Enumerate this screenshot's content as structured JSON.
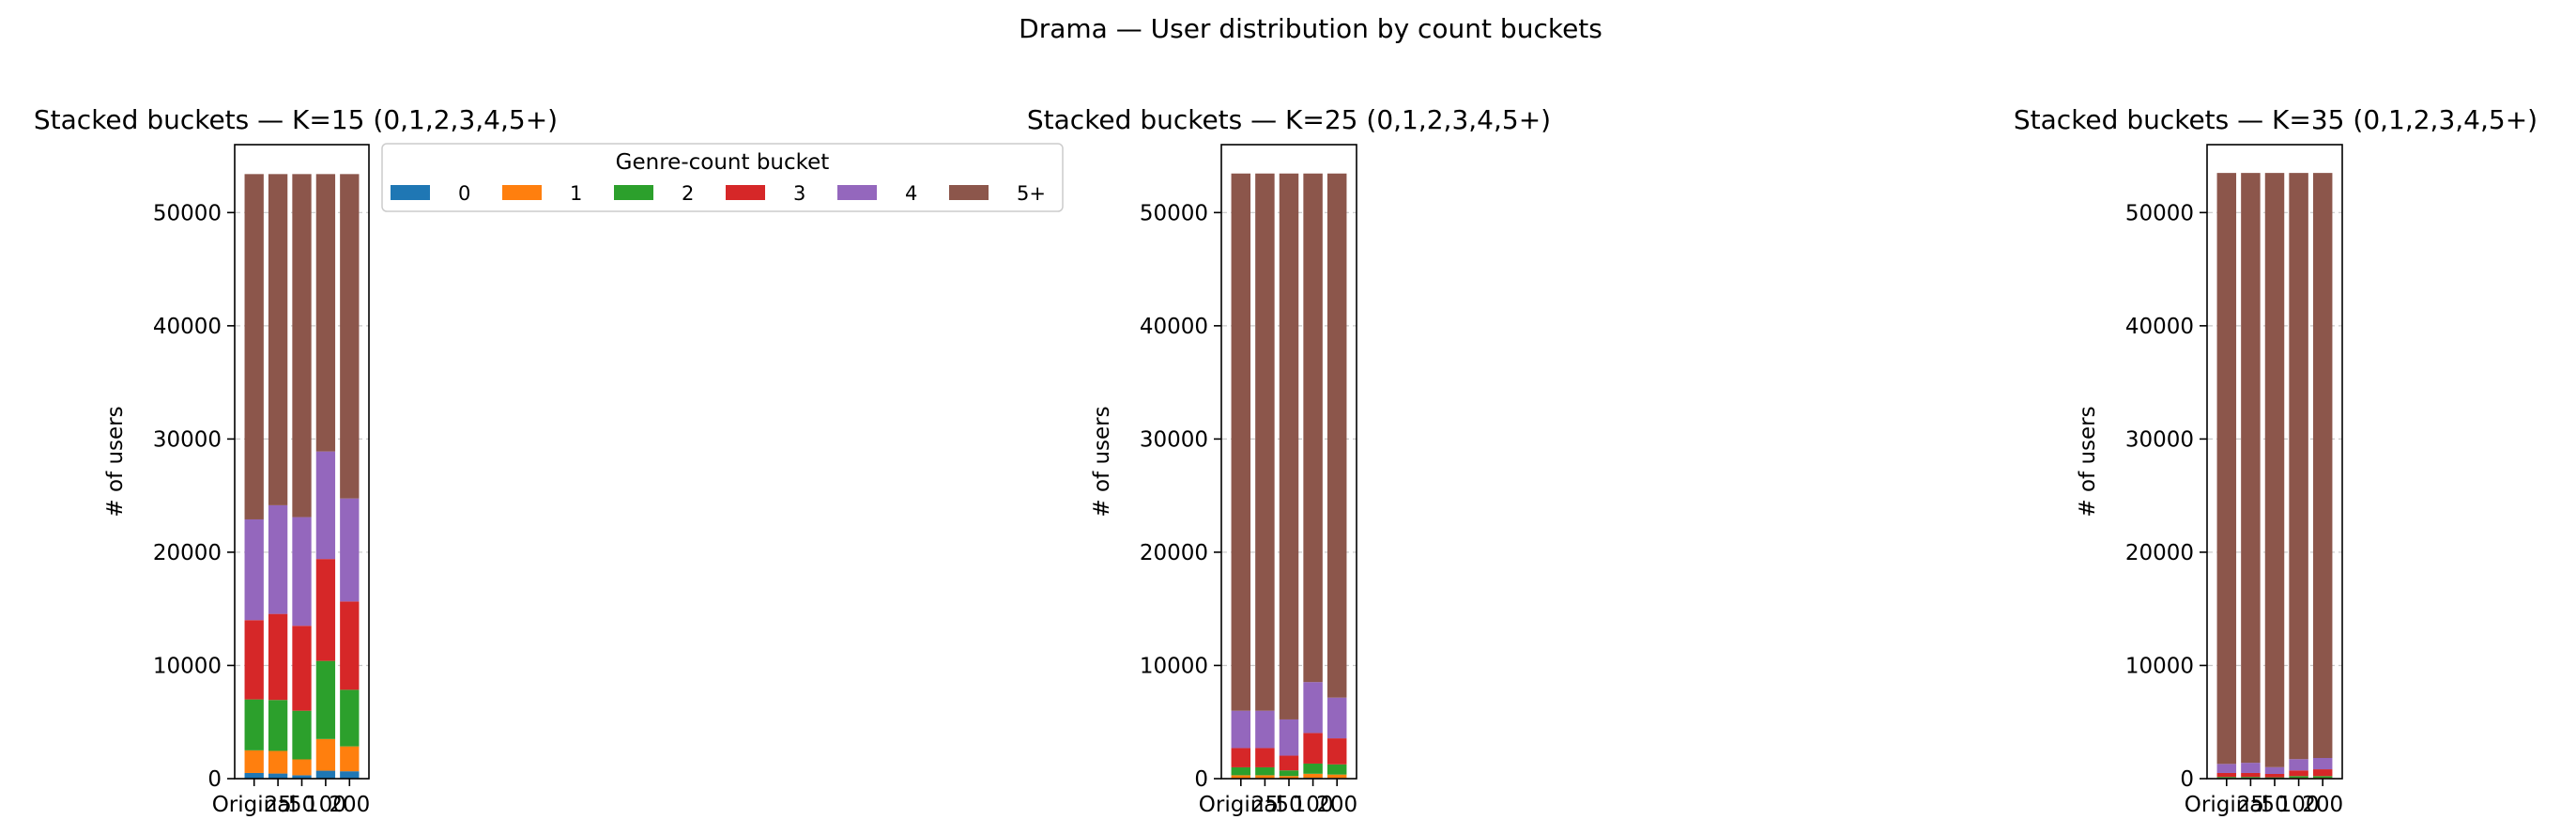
{
  "figure": {
    "title": "Drama — User distribution by count buckets"
  },
  "colors": {
    "0": "#1f77b4",
    "1": "#ff7f0e",
    "2": "#2ca02c",
    "3": "#d62728",
    "4": "#9467bd",
    "5+": "#8c564b"
  },
  "chart_data": [
    {
      "type": "bar",
      "stacked": true,
      "title": "Stacked buckets — K=15  (0,1,2,3,4,5+)",
      "ylabel": "# of users",
      "ylim": [
        0,
        56000
      ],
      "yticks": [
        0,
        10000,
        20000,
        30000,
        40000,
        50000
      ],
      "categories": [
        "Original",
        "25",
        "50",
        "100",
        "200"
      ],
      "series": [
        {
          "name": "0",
          "values": [
            500,
            450,
            300,
            700,
            650
          ]
        },
        {
          "name": "1",
          "values": [
            2000,
            2000,
            1400,
            2800,
            2200
          ]
        },
        {
          "name": "2",
          "values": [
            4500,
            4500,
            4300,
            6900,
            5000
          ]
        },
        {
          "name": "3",
          "values": [
            7000,
            7600,
            7500,
            9000,
            7800
          ]
        },
        {
          "name": "4",
          "values": [
            8900,
            9600,
            9600,
            9500,
            9100
          ]
        },
        {
          "name": "5+",
          "values": [
            30500,
            29250,
            30300,
            24500,
            28650
          ]
        }
      ],
      "legend": {
        "title": "Genre-count bucket",
        "placement": "outside right, top",
        "entries": [
          "0",
          "1",
          "2",
          "3",
          "4",
          "5+"
        ]
      },
      "grid": "y, dashed"
    },
    {
      "type": "bar",
      "stacked": true,
      "title": "Stacked buckets — K=25  (0,1,2,3,4,5+)",
      "ylabel": "# of users",
      "ylim": [
        0,
        56000
      ],
      "yticks": [
        0,
        10000,
        20000,
        30000,
        40000,
        50000
      ],
      "categories": [
        "Original",
        "25",
        "50",
        "100",
        "200"
      ],
      "series": [
        {
          "name": "0",
          "values": [
            50,
            50,
            30,
            80,
            60
          ]
        },
        {
          "name": "1",
          "values": [
            250,
            250,
            200,
            350,
            300
          ]
        },
        {
          "name": "2",
          "values": [
            700,
            700,
            500,
            900,
            900
          ]
        },
        {
          "name": "3",
          "values": [
            1700,
            1700,
            1300,
            2700,
            2300
          ]
        },
        {
          "name": "4",
          "values": [
            3300,
            3300,
            3200,
            4500,
            3600
          ]
        },
        {
          "name": "5+",
          "values": [
            47450,
            47450,
            48220,
            44920,
            46290
          ]
        }
      ],
      "grid": "y, dashed"
    },
    {
      "type": "bar",
      "stacked": true,
      "title": "Stacked buckets — K=35  (0,1,2,3,4,5+)",
      "ylabel": "# of users",
      "ylim": [
        0,
        56000
      ],
      "yticks": [
        0,
        10000,
        20000,
        30000,
        40000,
        50000
      ],
      "categories": [
        "Original",
        "25",
        "50",
        "100",
        "200"
      ],
      "series": [
        {
          "name": "0",
          "values": [
            10,
            10,
            5,
            15,
            15
          ]
        },
        {
          "name": "1",
          "values": [
            40,
            40,
            30,
            60,
            60
          ]
        },
        {
          "name": "2",
          "values": [
            100,
            100,
            80,
            150,
            150
          ]
        },
        {
          "name": "3",
          "values": [
            350,
            350,
            300,
            500,
            600
          ]
        },
        {
          "name": "4",
          "values": [
            800,
            900,
            600,
            1000,
            1000
          ]
        },
        {
          "name": "5+",
          "values": [
            52200,
            52100,
            52485,
            51775,
            51675
          ]
        }
      ],
      "grid": "y, dashed"
    }
  ]
}
